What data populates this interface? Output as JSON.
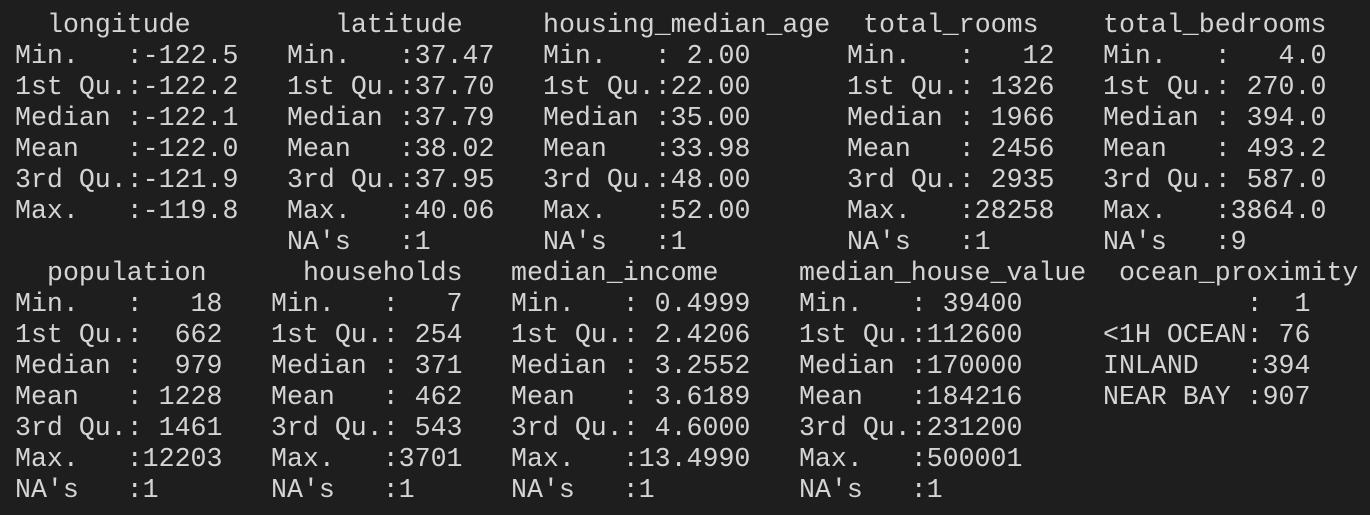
{
  "blocks": [
    {
      "columns": [
        {
          "header": "longitude",
          "cells": [
            "Min.   :-122.5",
            "1st Qu.:-122.2",
            "Median :-122.1",
            "Mean   :-122.0",
            "3rd Qu.:-121.9",
            "Max.   :-119.8"
          ]
        },
        {
          "header": "latitude",
          "cells": [
            "Min.   :37.47",
            "1st Qu.:37.70",
            "Median :37.79",
            "Mean   :38.02",
            "3rd Qu.:37.95",
            "Max.   :40.06",
            "NA's   :1"
          ]
        },
        {
          "header": "housing_median_age",
          "cells": [
            "Min.   : 2.00",
            "1st Qu.:22.00",
            "Median :35.00",
            "Mean   :33.98",
            "3rd Qu.:48.00",
            "Max.   :52.00",
            "NA's   :1"
          ]
        },
        {
          "header": "total_rooms",
          "cells": [
            "Min.   :   12",
            "1st Qu.: 1326",
            "Median : 1966",
            "Mean   : 2456",
            "3rd Qu.: 2935",
            "Max.   :28258",
            "NA's   :1"
          ]
        },
        {
          "header": "total_bedrooms",
          "cells": [
            "Min.   :   4.0",
            "1st Qu.: 270.0",
            "Median : 394.0",
            "Mean   : 493.2",
            "3rd Qu.: 587.0",
            "Max.   :3864.0",
            "NA's   :9"
          ]
        }
      ]
    },
    {
      "columns": [
        {
          "header": "population",
          "cells": [
            "Min.   :   18",
            "1st Qu.:  662",
            "Median :  979",
            "Mean   : 1228",
            "3rd Qu.: 1461",
            "Max.   :12203",
            "NA's   :1"
          ]
        },
        {
          "header": "households",
          "cells": [
            "Min.   :   7",
            "1st Qu.: 254",
            "Median : 371",
            "Mean   : 462",
            "3rd Qu.: 543",
            "Max.   :3701",
            "NA's   :1"
          ]
        },
        {
          "header": "median_income",
          "cells": [
            "Min.   : 0.4999",
            "1st Qu.: 2.4206",
            "Median : 3.2552",
            "Mean   : 3.6189",
            "3rd Qu.: 4.6000",
            "Max.   :13.4990",
            "NA's   :1"
          ]
        },
        {
          "header": "median_house_value",
          "cells": [
            "Min.   : 39400",
            "1st Qu.:112600",
            "Median :170000",
            "Mean   :184216",
            "3rd Qu.:231200",
            "Max.   :500001",
            "NA's   :1"
          ]
        },
        {
          "header": "ocean_proximity",
          "cells": [
            "         :  1",
            "<1H OCEAN: 76",
            "INLAND   :394",
            "NEAR BAY :907"
          ]
        }
      ]
    }
  ]
}
